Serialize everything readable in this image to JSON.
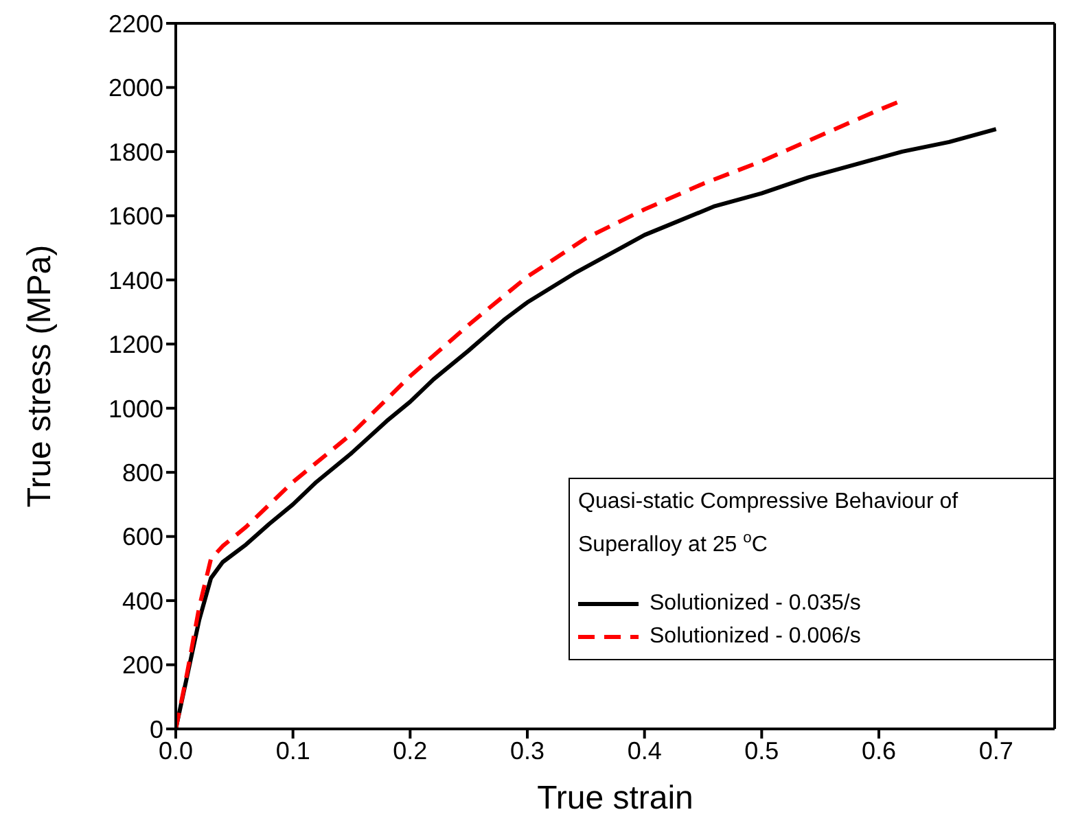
{
  "chart_data": {
    "type": "line",
    "xlabel": "True strain",
    "ylabel": "True stress (MPa)",
    "legend_title": "Quasi-static Compressive Behaviour of Superalloy at 25 $^{o}$C",
    "xlim": [
      0,
      0.75
    ],
    "xticks": [
      "0.0",
      0.1,
      0.2,
      0.3,
      0.4,
      0.5,
      0.6,
      0.7
    ],
    "ylim": [
      0,
      2200
    ],
    "yticks": [
      0,
      200,
      400,
      600,
      800,
      1000,
      1200,
      1400,
      1600,
      1800,
      2000,
      2200
    ],
    "grid": false,
    "legend": "bottom right",
    "series": [
      {
        "name": "Solutionized - 0.035/s",
        "color": "#000000",
        "line_style": "solid",
        "x": [
          0,
          0.01,
          0.02,
          0.03,
          0.04,
          0.06,
          0.08,
          0.1,
          0.12,
          0.15,
          0.18,
          0.2,
          0.22,
          0.25,
          0.28,
          0.3,
          0.34,
          0.38,
          0.4,
          0.42,
          0.46,
          0.5,
          0.54,
          0.58,
          0.62,
          0.66,
          0.7
        ],
        "values": [
          0,
          170,
          340,
          470,
          520,
          575,
          640,
          700,
          770,
          860,
          960,
          1020,
          1090,
          1180,
          1275,
          1330,
          1420,
          1500,
          1540,
          1570,
          1630,
          1670,
          1720,
          1760,
          1800,
          1830,
          1870
        ]
      },
      {
        "name": "Solutionized - 0.006/s",
        "color": "#ff0000",
        "line_style": "dashed",
        "x": [
          0,
          0.01,
          0.02,
          0.03,
          0.04,
          0.06,
          0.08,
          0.1,
          0.15,
          0.2,
          0.25,
          0.3,
          0.35,
          0.4,
          0.45,
          0.5,
          0.55,
          0.6,
          0.62
        ],
        "values": [
          0,
          180,
          380,
          530,
          570,
          630,
          700,
          770,
          920,
          1100,
          1260,
          1410,
          1530,
          1620,
          1700,
          1770,
          1850,
          1930,
          1960
        ]
      }
    ]
  }
}
